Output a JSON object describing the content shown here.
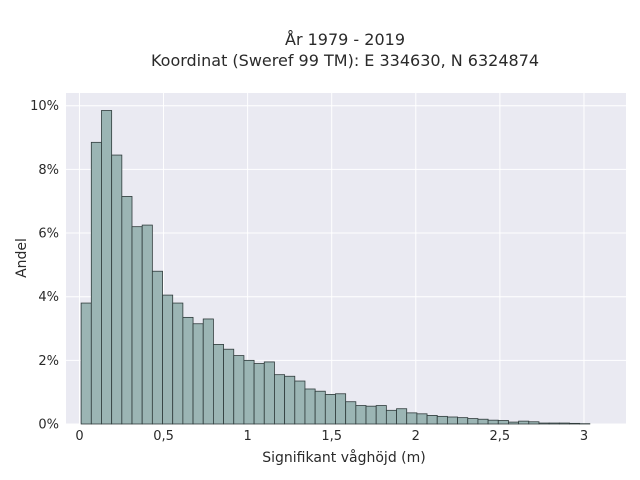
{
  "chart_data": {
    "type": "bar",
    "title_lines": [
      "År 1979 - 2019",
      "Koordinat (Sweref 99 TM): E 334630, N 6324874"
    ],
    "xlabel": "Signifikant våghöjd (m)",
    "ylabel": "Andel",
    "xlim": [
      -0.08,
      3.25
    ],
    "ylim": [
      0,
      0.104
    ],
    "x_ticks": [
      0,
      0.5,
      1,
      1.5,
      2,
      2.5,
      3
    ],
    "x_tick_labels": [
      "0",
      "0,5",
      "1",
      "1,5",
      "2",
      "2,5",
      "3"
    ],
    "y_ticks": [
      0,
      0.02,
      0.04,
      0.06,
      0.08,
      0.1
    ],
    "y_tick_labels": [
      "0%",
      "2%",
      "4%",
      "6%",
      "8%",
      "10%"
    ],
    "bin_width": 0.0605,
    "bin_start": 0.01,
    "values": [
      0.038,
      0.0885,
      0.0985,
      0.0845,
      0.0715,
      0.062,
      0.0625,
      0.048,
      0.0405,
      0.038,
      0.0335,
      0.0315,
      0.033,
      0.025,
      0.0235,
      0.0215,
      0.02,
      0.019,
      0.0195,
      0.0155,
      0.015,
      0.0135,
      0.011,
      0.0103,
      0.0093,
      0.0095,
      0.007,
      0.0058,
      0.0056,
      0.0058,
      0.0043,
      0.0048,
      0.0035,
      0.0032,
      0.0027,
      0.0024,
      0.0022,
      0.002,
      0.0017,
      0.0015,
      0.0012,
      0.0011,
      0.0006,
      0.0009,
      0.0007,
      0.0003,
      0.0003,
      0.0003,
      0.0002,
      0.0001
    ],
    "grid": true,
    "colors": {
      "bar_fill": "#9bb5b4",
      "bar_edge": "#2f3b3b",
      "plot_background": "#eaeaf2",
      "grid": "#ffffff"
    }
  }
}
